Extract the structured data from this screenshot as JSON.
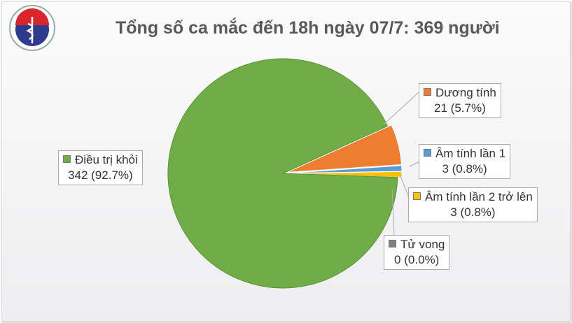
{
  "logo_text": "BỘ Y TẾ",
  "chart_data": {
    "type": "pie",
    "title": "Tổng số ca mắc đến 18h ngày 07/7: 369 người",
    "slices": [
      {
        "name": "Điều trị khỏi",
        "value": 342,
        "label": "342 (92.7%)",
        "color": "#70ad47"
      },
      {
        "name": "Dương tính",
        "value": 21,
        "label": "21 (5.7%)",
        "color": "#ed7d31"
      },
      {
        "name": "Âm tính lần 1",
        "value": 3,
        "label": "3 (0.8%)",
        "color": "#5b9bd5"
      },
      {
        "name": "Âm tính lần 2 trở lên",
        "value": 3,
        "label": "3 (0.8%)",
        "color": "#ffc000"
      },
      {
        "name": "Tử vong",
        "value": 0,
        "label": "0 (0.0%)",
        "color": "#7f7f7f"
      }
    ]
  }
}
